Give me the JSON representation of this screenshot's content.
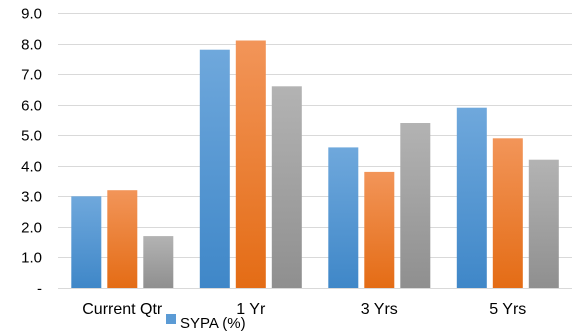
{
  "chart_data": {
    "type": "bar",
    "categories": [
      "Current Qtr",
      "1 Yr",
      "3 Yrs",
      "5 Yrs"
    ],
    "series": [
      {
        "name": "SYPA (%)",
        "color": "#5b9bd5",
        "values": [
          3.0,
          7.8,
          4.6,
          5.9
        ]
      },
      {
        "color": "#ed7d31",
        "values": [
          3.2,
          8.1,
          3.8,
          4.9
        ]
      },
      {
        "color": "#a5a5a5",
        "values": [
          1.7,
          6.6,
          5.4,
          4.2
        ]
      }
    ],
    "ylim": [
      0,
      9
    ],
    "yticks": [
      0,
      1,
      2,
      3,
      4,
      5,
      6,
      7,
      8,
      9
    ],
    "ytick_labels": [
      "-",
      "1.0",
      "2.0",
      "3.0",
      "4.0",
      "5.0",
      "6.0",
      "7.0",
      "8.0",
      "9.0"
    ],
    "grid": true,
    "legend_position": "bottom"
  }
}
